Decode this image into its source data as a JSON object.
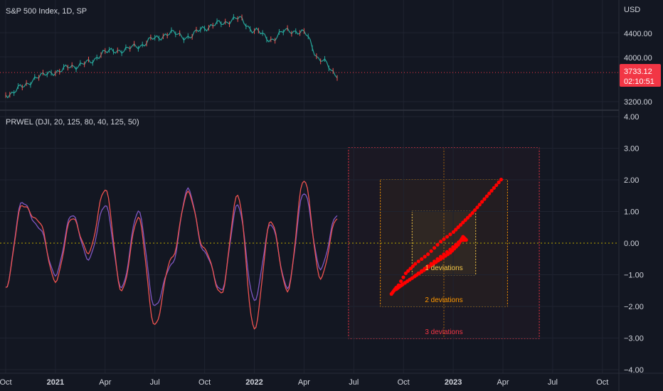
{
  "main_pane": {
    "title": "S&P 500 Index, 1D, SP",
    "currency": "USD",
    "price_ticks": [
      "4400.00",
      "4000.00",
      "3200.00"
    ],
    "last_price": "3733.12",
    "countdown": "02:10:51",
    "last_price_color": "#f23645"
  },
  "indicator_pane": {
    "title": "PRWEL (DJI, 20, 125, 80, 40, 125, 50)",
    "y_ticks": [
      "4.00",
      "3.00",
      "2.00",
      "1.00",
      "0.00",
      "−1.00",
      "−2.00",
      "−3.00",
      "−4.00"
    ],
    "deviation_labels": [
      "1 deviations",
      "2 deviations",
      "3 deviations"
    ],
    "deviation_colors": [
      "#f7c948",
      "#ff9800",
      "#f23645"
    ]
  },
  "time_axis": {
    "labels": [
      {
        "text": "Oct",
        "bold": false
      },
      {
        "text": "2021",
        "bold": true
      },
      {
        "text": "Apr",
        "bold": false
      },
      {
        "text": "Jul",
        "bold": false
      },
      {
        "text": "Oct",
        "bold": false
      },
      {
        "text": "2022",
        "bold": true
      },
      {
        "text": "Apr",
        "bold": false
      },
      {
        "text": "Jul",
        "bold": false
      },
      {
        "text": "Oct",
        "bold": false
      },
      {
        "text": "2023",
        "bold": true
      },
      {
        "text": "Apr",
        "bold": false
      },
      {
        "text": "Jul",
        "bold": false
      },
      {
        "text": "Oct",
        "bold": false
      }
    ]
  },
  "chart_data": [
    {
      "type": "line",
      "title": "S&P 500 Index, 1D, SP",
      "ylabel": "USD",
      "ylim": [
        3100,
        4850
      ],
      "series": [
        {
          "color": "#26a69a",
          "x": [
            "2020-10",
            "2020-11",
            "2020-12",
            "2021-01",
            "2021-02",
            "2021-03",
            "2021-04",
            "2021-05",
            "2021-06",
            "2021-07",
            "2021-08",
            "2021-09",
            "2021-10",
            "2021-11",
            "2021-12",
            "2022-01",
            "2022-02",
            "2022-03",
            "2022-04",
            "2022-05",
            "2022-06"
          ],
          "values": [
            3350,
            3500,
            3700,
            3780,
            3880,
            3950,
            4150,
            4180,
            4260,
            4400,
            4500,
            4420,
            4600,
            4680,
            4770,
            4550,
            4380,
            4550,
            4500,
            4000,
            3733
          ]
        }
      ]
    },
    {
      "type": "line",
      "title": "PRWEL (DJI, 20, 125, 80, 40, 125, 50)",
      "ylim": [
        -4,
        4
      ],
      "series": [
        {
          "color": "#7e57c2",
          "x": [
            "2020-10",
            "2020-11",
            "2020-12",
            "2021-01",
            "2021-02",
            "2021-03",
            "2021-04",
            "2021-05",
            "2021-06",
            "2021-07",
            "2021-08",
            "2021-09",
            "2021-10",
            "2021-11",
            "2021-12",
            "2022-01",
            "2022-02",
            "2022-03",
            "2022-04",
            "2022-05",
            "2022-06"
          ],
          "values": [
            -1.4,
            1.3,
            0.5,
            -1.0,
            0.9,
            -0.5,
            1.2,
            -1.4,
            1.0,
            -2.0,
            -0.7,
            1.7,
            -0.3,
            -1.5,
            1.2,
            -1.8,
            0.6,
            -1.4,
            1.6,
            -0.8,
            0.9
          ]
        },
        {
          "color": "#ef5350",
          "x": [
            "2020-10",
            "2020-11",
            "2020-12",
            "2021-01",
            "2021-02",
            "2021-03",
            "2021-04",
            "2021-05",
            "2021-06",
            "2021-07",
            "2021-08",
            "2021-09",
            "2021-10",
            "2021-11",
            "2021-12",
            "2022-01",
            "2022-02",
            "2022-03",
            "2022-04",
            "2022-05",
            "2022-06"
          ],
          "values": [
            -1.4,
            1.2,
            0.7,
            -1.2,
            0.8,
            -0.3,
            1.7,
            -1.5,
            0.8,
            -2.6,
            -0.5,
            1.6,
            -0.2,
            -1.6,
            1.5,
            -2.7,
            0.7,
            -1.5,
            2.0,
            -1.1,
            0.8
          ]
        }
      ]
    },
    {
      "type": "scatter",
      "color": "#ff0000",
      "xlim": [
        -3,
        3
      ],
      "ylim": [
        -3,
        3
      ],
      "x": [
        -1.65,
        -1.5,
        -1.3,
        -1.0,
        -0.7,
        -0.4,
        -0.1,
        0.2,
        0.45,
        0.6,
        0.7,
        0.55,
        0.2,
        -0.2,
        -0.6,
        -1.0,
        -1.3,
        -1.5,
        -1.2,
        -0.9,
        -0.5,
        -0.1,
        0.3,
        0.6,
        0.9,
        1.2,
        1.5,
        1.8
      ],
      "y": [
        -1.6,
        -1.4,
        -1.3,
        -1.1,
        -0.9,
        -0.7,
        -0.5,
        -0.3,
        -0.05,
        0.2,
        0.1,
        0.1,
        -0.2,
        -0.5,
        -0.8,
        -1.1,
        -1.3,
        -1.45,
        -0.95,
        -0.65,
        -0.35,
        0.05,
        0.35,
        0.65,
        0.95,
        1.3,
        1.65,
        2.0
      ]
    }
  ]
}
